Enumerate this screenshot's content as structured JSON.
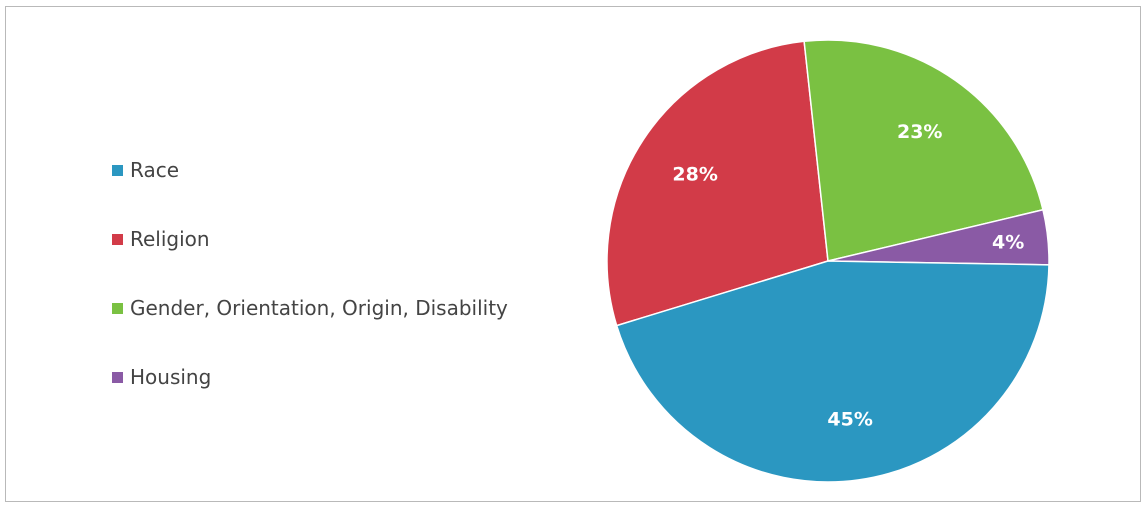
{
  "chart_data": {
    "type": "pie",
    "categories": [
      "Race",
      "Religion",
      "Gender, Orientation, Origin, Disability",
      "Housing"
    ],
    "values": [
      45,
      28,
      23,
      4
    ],
    "value_labels": [
      "45%",
      "28%",
      "23%",
      "4%"
    ],
    "colors": [
      "#2b97c1",
      "#d23b48",
      "#7ac142",
      "#8a5aa5"
    ],
    "legend": "left"
  }
}
